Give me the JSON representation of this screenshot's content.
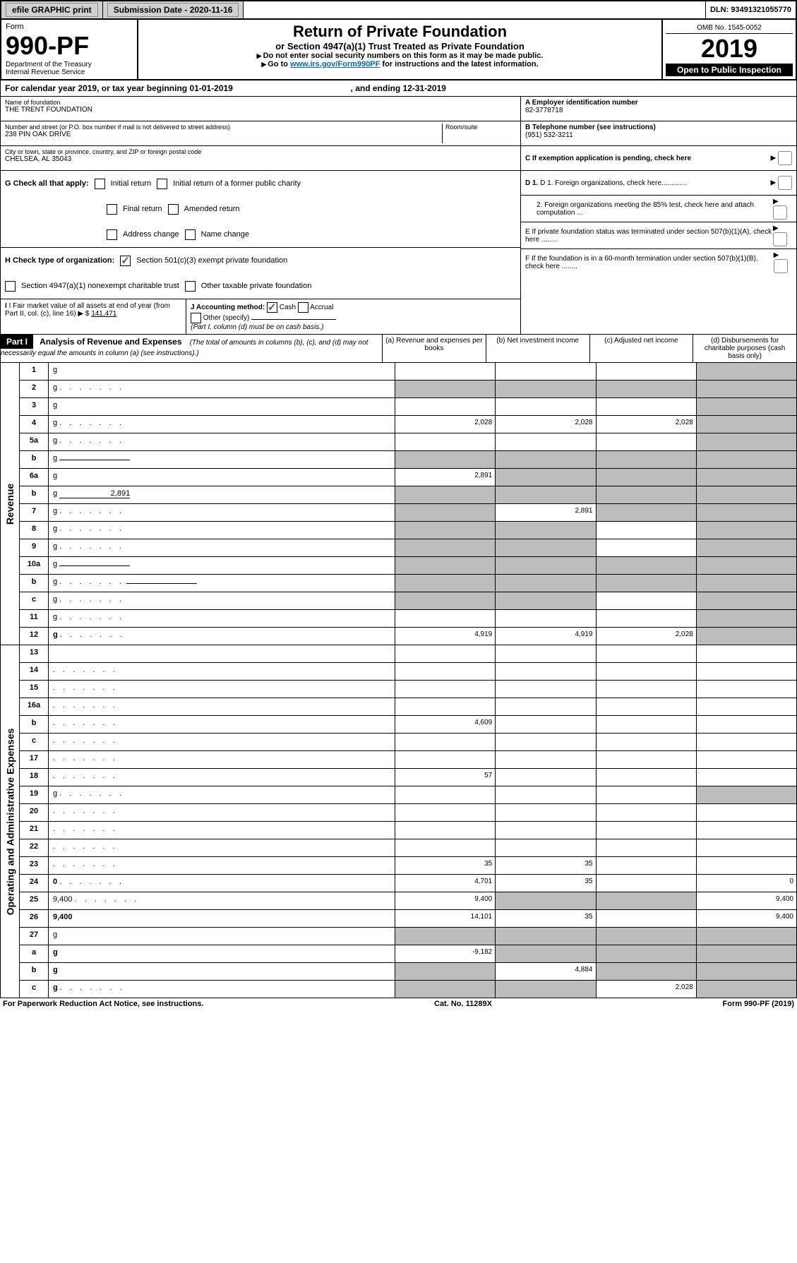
{
  "topbar": {
    "efile": "efile GRAPHIC print",
    "submission": "Submission Date - 2020-11-16",
    "dln": "DLN: 93491321055770"
  },
  "header": {
    "form_label": "Form",
    "form_number": "990-PF",
    "dept": "Department of the Treasury",
    "irs": "Internal Revenue Service",
    "title": "Return of Private Foundation",
    "subtitle": "or Section 4947(a)(1) Trust Treated as Private Foundation",
    "instr1": "Do not enter social security numbers on this form as it may be made public.",
    "instr2_pre": "Go to ",
    "instr2_link": "www.irs.gov/Form990PF",
    "instr2_post": " for instructions and the latest information.",
    "omb": "OMB No. 1545-0052",
    "year": "2019",
    "open": "Open to Public Inspection"
  },
  "calyear": {
    "pre": "For calendar year 2019, or tax year beginning ",
    "begin": "01-01-2019",
    "mid": " , and ending ",
    "end": "12-31-2019"
  },
  "info": {
    "name_label": "Name of foundation",
    "name": "THE TRENT FOUNDATION",
    "addr_label": "Number and street (or P.O. box number if mail is not delivered to street address)",
    "addr": "238 PIN OAK DRIVE",
    "room_label": "Room/suite",
    "city_label": "City or town, state or province, country, and ZIP or foreign postal code",
    "city": "CHELSEA, AL  35043",
    "a_label": "A Employer identification number",
    "a_val": "82-3778718",
    "b_label": "B Telephone number (see instructions)",
    "b_val": "(951) 532-3211",
    "c_label": "C If exemption application is pending, check here",
    "d1": "D 1. Foreign organizations, check here.............",
    "d2": "2. Foreign organizations meeting the 85% test, check here and attach computation ...",
    "e": "E  If private foundation status was terminated under section 507(b)(1)(A), check here ........",
    "f": "F  If the foundation is in a 60-month termination under section 507(b)(1)(B), check here ........"
  },
  "checks": {
    "g_label": "G Check all that apply:",
    "g_items": [
      "Initial return",
      "Initial return of a former public charity",
      "Final return",
      "Amended return",
      "Address change",
      "Name change"
    ],
    "h_label": "H Check type of organization:",
    "h1": "Section 501(c)(3) exempt private foundation",
    "h2": "Section 4947(a)(1) nonexempt charitable trust",
    "h3": "Other taxable private foundation",
    "i_label": "I Fair market value of all assets at end of year (from Part II, col. (c), line 16)",
    "i_val": "141,471",
    "j_label": "J Accounting method:",
    "j_cash": "Cash",
    "j_accrual": "Accrual",
    "j_other": "Other (specify)",
    "j_note": "(Part I, column (d) must be on cash basis.)"
  },
  "part1": {
    "label": "Part I",
    "title": "Analysis of Revenue and Expenses",
    "note": "(The total of amounts in columns (b), (c), and (d) may not necessarily equal the amounts in column (a) (see instructions).)",
    "col_a": "(a)   Revenue and expenses per books",
    "col_b": "(b)  Net investment income",
    "col_c": "(c)  Adjusted net income",
    "col_d": "(d)  Disbursements for charitable purposes (cash basis only)"
  },
  "sections": {
    "revenue": "Revenue",
    "expenses": "Operating and Administrative Expenses"
  },
  "rows": [
    {
      "n": "1",
      "d": "g",
      "a": "",
      "b": "",
      "c": ""
    },
    {
      "n": "2",
      "d": "g",
      "dots": true,
      "a": "g",
      "b": "g",
      "c": "g"
    },
    {
      "n": "3",
      "d": "g",
      "a": "",
      "b": "",
      "c": ""
    },
    {
      "n": "4",
      "d": "g",
      "dots": true,
      "a": "2,028",
      "b": "2,028",
      "c": "2,028"
    },
    {
      "n": "5a",
      "d": "g",
      "dots": true,
      "a": "",
      "b": "",
      "c": ""
    },
    {
      "n": "b",
      "d": "g",
      "inline": true,
      "a": "g",
      "b": "g",
      "c": "g"
    },
    {
      "n": "6a",
      "d": "g",
      "a": "2,891",
      "b": "g",
      "c": "g"
    },
    {
      "n": "b",
      "d": "g",
      "inline": true,
      "inlineval": "2,891",
      "a": "g",
      "b": "g",
      "c": "g"
    },
    {
      "n": "7",
      "d": "g",
      "dots": true,
      "a": "g",
      "b": "2,891",
      "c": "g"
    },
    {
      "n": "8",
      "d": "g",
      "dots": true,
      "a": "g",
      "b": "g",
      "c": ""
    },
    {
      "n": "9",
      "d": "g",
      "dots": true,
      "a": "g",
      "b": "g",
      "c": ""
    },
    {
      "n": "10a",
      "d": "g",
      "inline": true,
      "a": "g",
      "b": "g",
      "c": "g"
    },
    {
      "n": "b",
      "d": "g",
      "dots": true,
      "inline": true,
      "a": "g",
      "b": "g",
      "c": "g"
    },
    {
      "n": "c",
      "d": "g",
      "dots": true,
      "a": "g",
      "b": "g",
      "c": ""
    },
    {
      "n": "11",
      "d": "g",
      "dots": true,
      "a": "",
      "b": "",
      "c": ""
    },
    {
      "n": "12",
      "d": "g",
      "bold": true,
      "dots": true,
      "a": "4,919",
      "b": "4,919",
      "c": "2,028"
    }
  ],
  "rows2": [
    {
      "n": "13",
      "d": "",
      "a": "",
      "b": "",
      "c": ""
    },
    {
      "n": "14",
      "d": "",
      "dots": true,
      "a": "",
      "b": "",
      "c": ""
    },
    {
      "n": "15",
      "d": "",
      "dots": true,
      "a": "",
      "b": "",
      "c": ""
    },
    {
      "n": "16a",
      "d": "",
      "dots": true,
      "a": "",
      "b": "",
      "c": ""
    },
    {
      "n": "b",
      "d": "",
      "dots": true,
      "a": "4,609",
      "b": "",
      "c": ""
    },
    {
      "n": "c",
      "d": "",
      "dots": true,
      "a": "",
      "b": "",
      "c": ""
    },
    {
      "n": "17",
      "d": "",
      "dots": true,
      "a": "",
      "b": "",
      "c": ""
    },
    {
      "n": "18",
      "d": "",
      "dots": true,
      "a": "57",
      "b": "",
      "c": ""
    },
    {
      "n": "19",
      "d": "g",
      "dots": true,
      "a": "",
      "b": "",
      "c": ""
    },
    {
      "n": "20",
      "d": "",
      "dots": true,
      "a": "",
      "b": "",
      "c": ""
    },
    {
      "n": "21",
      "d": "",
      "dots": true,
      "a": "",
      "b": "",
      "c": ""
    },
    {
      "n": "22",
      "d": "",
      "dots": true,
      "a": "",
      "b": "",
      "c": ""
    },
    {
      "n": "23",
      "d": "",
      "dots": true,
      "a": "35",
      "b": "35",
      "c": ""
    },
    {
      "n": "24",
      "d": "0",
      "bold": true,
      "dots": true,
      "a": "4,701",
      "b": "35",
      "c": ""
    },
    {
      "n": "25",
      "d": "9,400",
      "dots": true,
      "a": "9,400",
      "b": "g",
      "c": "g"
    },
    {
      "n": "26",
      "d": "9,400",
      "bold": true,
      "a": "14,101",
      "b": "35",
      "c": ""
    },
    {
      "n": "27",
      "d": "g",
      "a": "g",
      "b": "g",
      "c": "g"
    },
    {
      "n": "a",
      "d": "g",
      "bold": true,
      "a": "-9,182",
      "b": "g",
      "c": "g"
    },
    {
      "n": "b",
      "d": "g",
      "bold": true,
      "a": "g",
      "b": "4,884",
      "c": "g"
    },
    {
      "n": "c",
      "d": "g",
      "bold": true,
      "dots": true,
      "a": "g",
      "b": "g",
      "c": "2,028"
    }
  ],
  "footer": {
    "left": "For Paperwork Reduction Act Notice, see instructions.",
    "center": "Cat. No. 11289X",
    "right": "Form 990-PF (2019)"
  }
}
